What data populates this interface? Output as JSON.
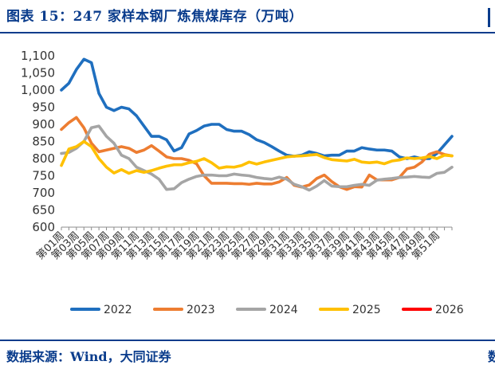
{
  "title": "图表 15：247 家样本钢厂炼焦煤库存（万吨）",
  "source": "数据来源：Wind，大同证券",
  "source_edge": "数",
  "chart_data": {
    "type": "line",
    "title": "图表 15：247 家样本钢厂炼焦煤库存（万吨）",
    "xlabel": "",
    "ylabel": "",
    "ylim": [
      600,
      1100
    ],
    "yticks": [
      "600",
      "650",
      "700",
      "750",
      "800",
      "850",
      "900",
      "950",
      "1,000",
      "1,050",
      "1,100"
    ],
    "grid": false,
    "legend": "bottom",
    "x_tick_labels": [
      "第01周",
      "第03周",
      "第05周",
      "第07周",
      "第09周",
      "第11周",
      "第13周",
      "第15周",
      "第17周",
      "第19周",
      "第21周",
      "第23周",
      "第25周",
      "第27周",
      "第29周",
      "第31周",
      "第33周",
      "第35周",
      "第37周",
      "第39周",
      "第41周",
      "第43周",
      "第45周",
      "第47周",
      "第49周",
      "第51周"
    ],
    "x_count": 53,
    "series": [
      {
        "name": "2022",
        "color": "#1f6fbf",
        "values": [
          1000,
          1020,
          1060,
          1090,
          1080,
          990,
          950,
          940,
          950,
          945,
          925,
          895,
          865,
          865,
          855,
          822,
          832,
          872,
          882,
          895,
          900,
          900,
          885,
          880,
          880,
          870,
          855,
          847,
          835,
          822,
          810,
          807,
          810,
          820,
          815,
          808,
          810,
          810,
          822,
          822,
          832,
          828,
          825,
          825,
          822,
          805,
          800,
          805,
          800,
          800,
          815,
          840,
          865
        ]
      },
      {
        "name": "2023",
        "color": "#ed7d31",
        "values": [
          885,
          905,
          920,
          890,
          845,
          820,
          825,
          830,
          835,
          830,
          818,
          825,
          838,
          822,
          805,
          800,
          800,
          795,
          785,
          750,
          728,
          728,
          728,
          727,
          727,
          725,
          728,
          726,
          726,
          732,
          745,
          722,
          717,
          723,
          742,
          752,
          733,
          718,
          710,
          718,
          717,
          752,
          738,
          738,
          738,
          745,
          770,
          775,
          790,
          813,
          820,
          812,
          808
        ]
      },
      {
        "name": "2024",
        "color": "#a5a5a5",
        "values": [
          815,
          818,
          830,
          850,
          890,
          895,
          865,
          845,
          810,
          800,
          775,
          765,
          755,
          740,
          710,
          712,
          730,
          740,
          748,
          752,
          752,
          750,
          750,
          755,
          752,
          750,
          745,
          742,
          740,
          746,
          740,
          725,
          718,
          708,
          720,
          736,
          720,
          718,
          718,
          722,
          725,
          722,
          737,
          740,
          742,
          745,
          746,
          748,
          746,
          745,
          757,
          760,
          775
        ]
      },
      {
        "name": "2025",
        "color": "#ffc000",
        "values": [
          780,
          828,
          835,
          850,
          835,
          800,
          775,
          758,
          768,
          757,
          765,
          760,
          765,
          772,
          778,
          782,
          782,
          788,
          792,
          800,
          788,
          772,
          776,
          775,
          780,
          790,
          784,
          790,
          795,
          800,
          805,
          807,
          808,
          810,
          812,
          803,
          797,
          795,
          793,
          798,
          790,
          788,
          790,
          785,
          793,
          796,
          802,
          800,
          802,
          806,
          800,
          810,
          808
        ]
      },
      {
        "name": "2026",
        "color": "#ff0000",
        "values": []
      }
    ]
  }
}
